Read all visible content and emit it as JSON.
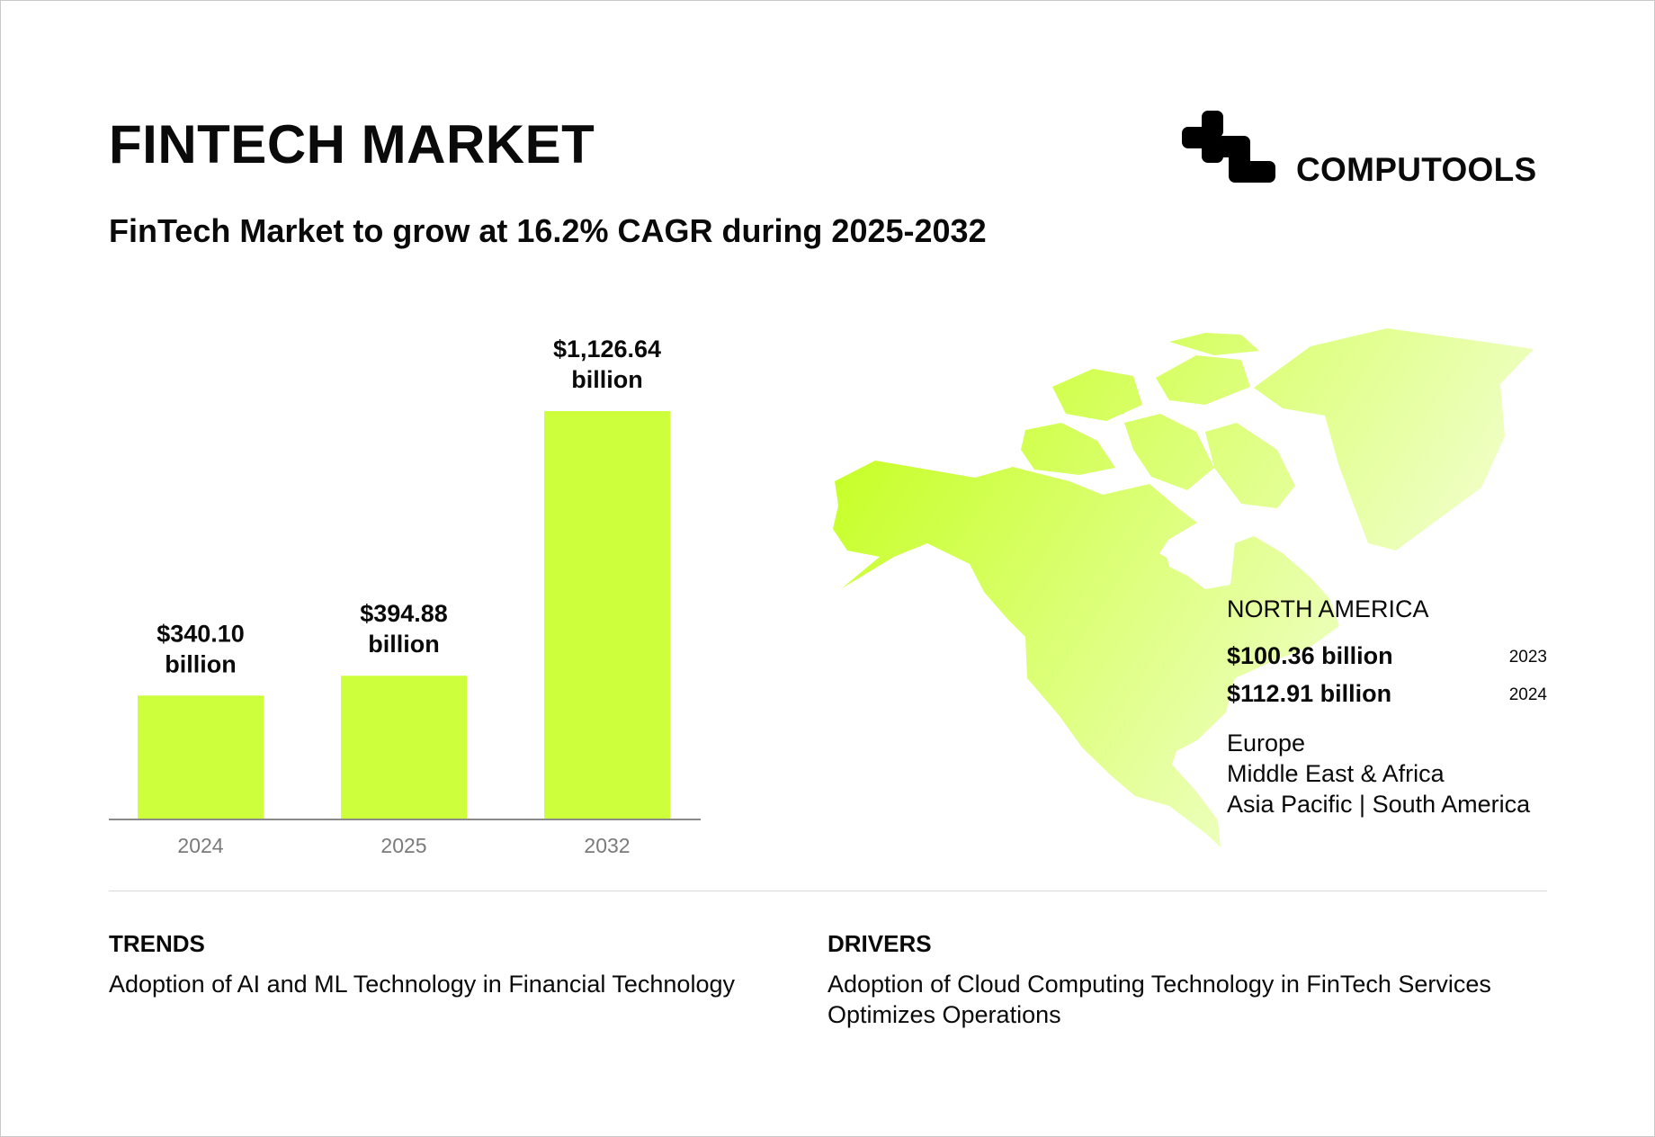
{
  "header": {
    "title": "FINTECH MARKET",
    "subtitle": "FinTech Market to grow at 16.2% CAGR during 2025-2032",
    "brand": "COMPUTOOLS"
  },
  "chart_data": {
    "type": "bar",
    "categories": [
      "2024",
      "2025",
      "2032"
    ],
    "values": [
      340.1,
      394.88,
      1126.64
    ],
    "data_labels": [
      {
        "value": "$340.10",
        "unit": "billion"
      },
      {
        "value": "$394.88",
        "unit": "billion"
      },
      {
        "value": "$1,126.64",
        "unit": "billion"
      }
    ],
    "ylabel": "",
    "xlabel": "",
    "grid": false,
    "bar_color": "#ceff3c"
  },
  "region": {
    "title": "NORTH AMERICA",
    "values": [
      {
        "amount": "$100.36 billion",
        "year": "2023"
      },
      {
        "amount": "$112.91 billion",
        "year": "2024"
      }
    ],
    "other_regions": [
      "Europe",
      "Middle East & Africa",
      "Asia Pacific | South America"
    ],
    "map_color_start": "#c8ff2a",
    "map_color_end": "#f7ffe2"
  },
  "trends": {
    "heading": "TRENDS",
    "lines": [
      "Adoption of AI and ML Technology in Financial Technology"
    ]
  },
  "drivers": {
    "heading": "DRIVERS",
    "lines": [
      "Adoption of Cloud Computing Technology in FinTech Services",
      "Optimizes Operations"
    ]
  }
}
